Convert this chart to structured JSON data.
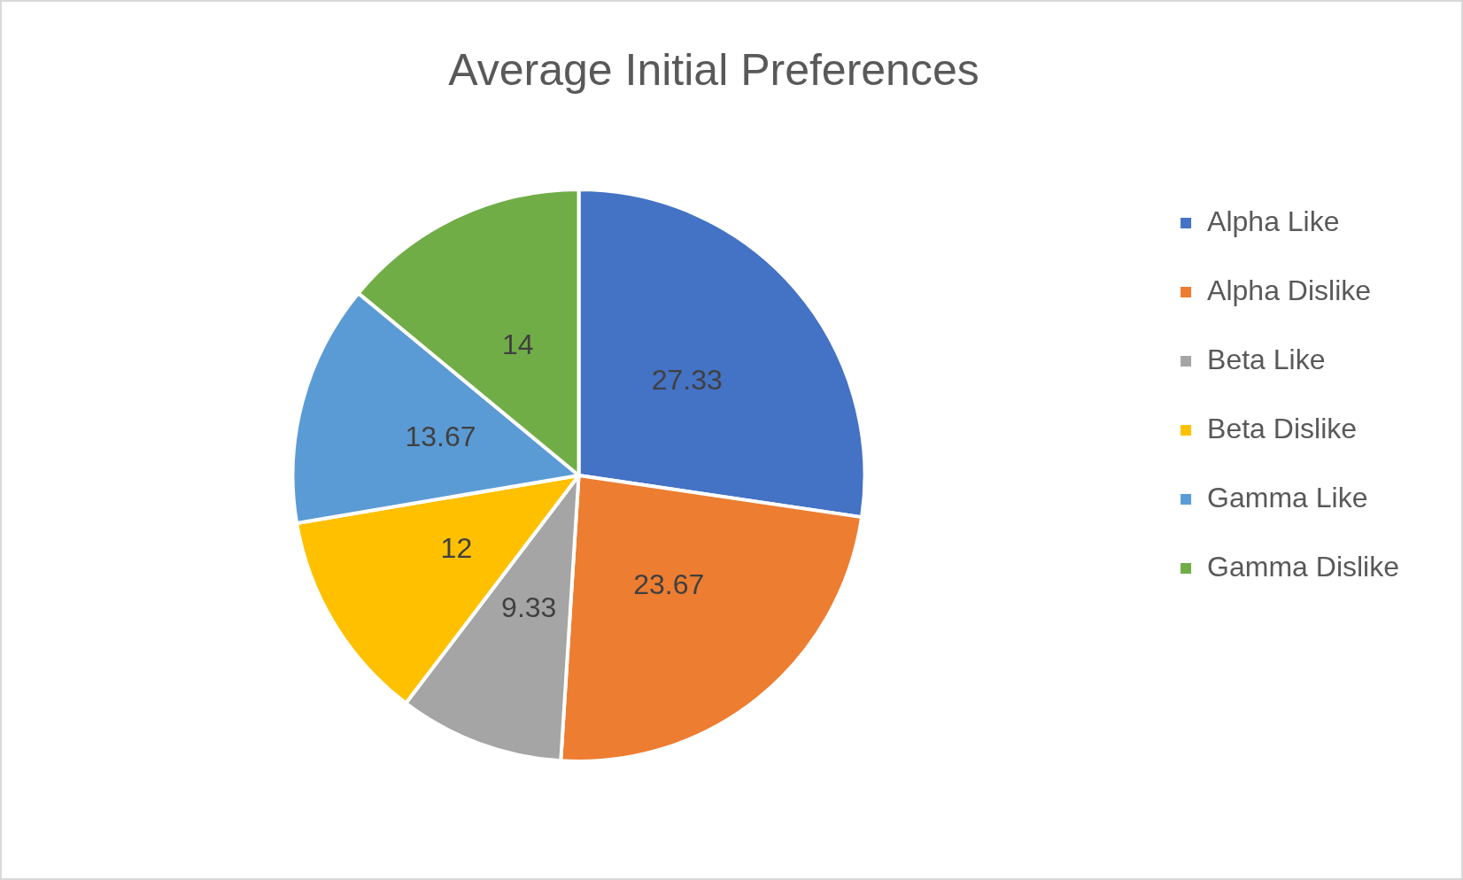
{
  "chart_data": {
    "type": "pie",
    "title": "Average Initial Preferences",
    "categories": [
      "Alpha Like",
      "Alpha Dislike",
      "Beta Like",
      "Beta Dislike",
      "Gamma Like",
      "Gamma Dislike"
    ],
    "values": [
      27.33,
      23.67,
      9.33,
      12,
      13.67,
      14
    ],
    "colors": [
      "#4472c4",
      "#ed7d31",
      "#a5a5a5",
      "#ffc000",
      "#5b9bd5",
      "#70ad47"
    ],
    "data_labels": true,
    "legend": "right"
  }
}
